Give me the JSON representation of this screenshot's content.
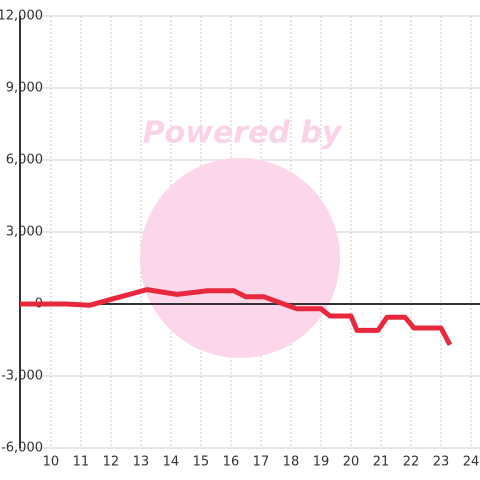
{
  "chart_data": {
    "type": "line",
    "watermark": "Powered by",
    "x": [
      8.97,
      10.5,
      11.3,
      13.2,
      14.2,
      15.2,
      16.1,
      16.5,
      17.1,
      18.2,
      19,
      19.3,
      20,
      20.2,
      20.9,
      21.2,
      21.8,
      22.1,
      23,
      23.3
    ],
    "series": [
      {
        "color": "#e8283c",
        "values": [
          0,
          0,
          -50,
          600,
          400,
          550,
          550,
          300,
          300,
          -200,
          -200,
          -500,
          -500,
          -1100,
          -1100,
          -550,
          -550,
          -1000,
          -1000,
          -1700
        ]
      }
    ],
    "xlim": [
      8.97,
      24.3
    ],
    "xticks": [
      10,
      11,
      12,
      13,
      14,
      15,
      16,
      17,
      18,
      19,
      20,
      21,
      22,
      23,
      24
    ],
    "ylim": [
      -6000,
      12000
    ],
    "yticks": [
      {
        "value": -6000,
        "label": "-6,000"
      },
      {
        "value": -3000,
        "label": "-3,000"
      },
      0,
      {
        "value": 3000,
        "label": "3,000"
      },
      {
        "value": 6000,
        "label": "6,000"
      },
      {
        "value": 9000,
        "label": "9,000"
      },
      {
        "value": 12000,
        "label": "12,000"
      }
    ],
    "grid": true
  }
}
